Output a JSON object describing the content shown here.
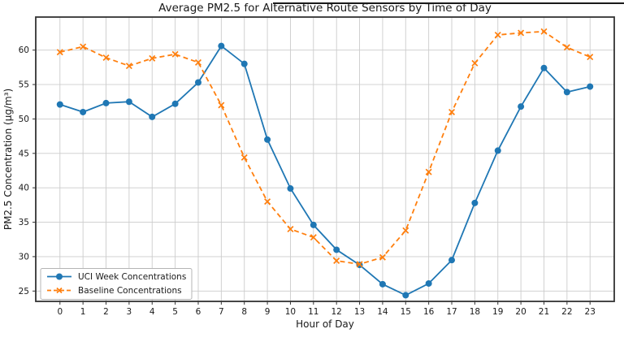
{
  "page": {
    "has_top_rule": true
  },
  "chart_data": {
    "type": "line",
    "title": "Average PM2.5 for Alternative Route Sensors by Time of Day",
    "xlabel": "Hour of Day",
    "ylabel": "PM2.5 Concentration (µg/m³)",
    "x": [
      0,
      1,
      2,
      3,
      4,
      5,
      6,
      7,
      8,
      9,
      10,
      11,
      12,
      13,
      14,
      15,
      16,
      17,
      18,
      19,
      20,
      21,
      22,
      23
    ],
    "xtick_labels": [
      "0",
      "1",
      "2",
      "3",
      "4",
      "5",
      "6",
      "7",
      "8",
      "9",
      "10",
      "11",
      "12",
      "13",
      "14",
      "15",
      "16",
      "17",
      "18",
      "19",
      "20",
      "21",
      "22",
      "23"
    ],
    "yticks": [
      25,
      30,
      35,
      40,
      45,
      50,
      55,
      60
    ],
    "xlim": [
      -1.05,
      24.05
    ],
    "ylim": [
      23.5,
      64.8
    ],
    "grid": true,
    "grid_color": "#cccccc",
    "spine_color": "#333333",
    "text_color": "#1a1a1a",
    "legend_position": "lower-left",
    "series": [
      {
        "name": "UCI Week Concentrations",
        "color": "#1f77b4",
        "marker": "circle",
        "line_style": "solid",
        "values": [
          52.1,
          51.0,
          52.3,
          52.5,
          50.3,
          52.2,
          55.3,
          60.6,
          58.0,
          47.0,
          39.9,
          34.6,
          31.0,
          28.8,
          26.0,
          24.4,
          26.1,
          29.5,
          37.8,
          45.4,
          51.8,
          57.4,
          53.9,
          54.7
        ]
      },
      {
        "name": "Baseline Concentrations",
        "color": "#ff7f0e",
        "marker": "x",
        "line_style": "dashed",
        "values": [
          59.7,
          60.5,
          58.9,
          57.7,
          58.8,
          59.4,
          58.2,
          52.0,
          44.4,
          38.0,
          34.0,
          32.8,
          29.4,
          28.9,
          29.9,
          33.8,
          42.3,
          51.0,
          58.1,
          62.2,
          62.5,
          62.7,
          60.4,
          59.0
        ]
      }
    ]
  }
}
